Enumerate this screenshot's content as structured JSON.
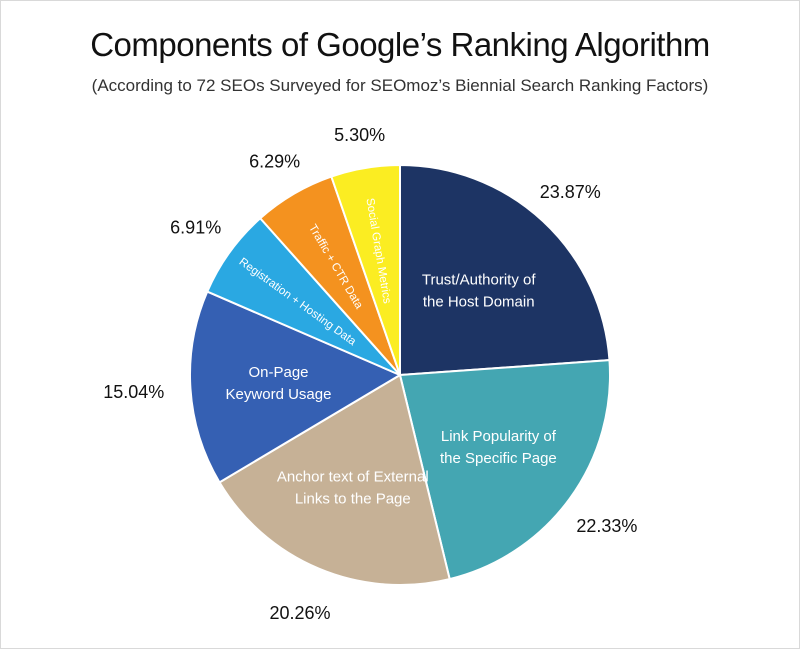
{
  "chart_data": {
    "type": "pie",
    "title": "Components of Google’s Ranking Algorithm",
    "subtitle": "(According to 72 SEOs Surveyed for SEOmoz’s Biennial Search Ranking Factors)",
    "slices": [
      {
        "label": "Trust/Authority of the Host Domain",
        "label_lines": [
          "Trust/Authority of",
          "the Host Domain"
        ],
        "value": 23.87,
        "value_label": "23.87%",
        "color": "#1d3464",
        "label_color": "#ffffff"
      },
      {
        "label": "Link Popularity of the Specific Page",
        "label_lines": [
          "Link Popularity of",
          "the Specific Page"
        ],
        "value": 22.33,
        "value_label": "22.33%",
        "color": "#44a6b2",
        "label_color": "#ffffff"
      },
      {
        "label": "Anchor text of External Links to the Page",
        "label_lines": [
          "Anchor text of External",
          "Links to the Page"
        ],
        "value": 20.26,
        "value_label": "20.26%",
        "color": "#c6b196",
        "label_color": "#ffffff"
      },
      {
        "label": "On-Page Keyword Usage",
        "label_lines": [
          "On-Page",
          "Keyword Usage"
        ],
        "value": 15.04,
        "value_label": "15.04%",
        "color": "#3560b3",
        "label_color": "#ffffff"
      },
      {
        "label": "Registration + Hosting Data",
        "label_lines": [
          "Registration + Hosting Data"
        ],
        "value": 6.91,
        "value_label": "6.91%",
        "color": "#2aa8e2",
        "label_color": "#ffffff"
      },
      {
        "label": "Traffic + CTR Data",
        "label_lines": [
          "Traffic + CTR Data"
        ],
        "value": 6.29,
        "value_label": "6.29%",
        "color": "#f4921f",
        "label_color": "#ffffff"
      },
      {
        "label": "Social Graph Metrics",
        "label_lines": [
          "Social Graph Metrics"
        ],
        "value": 5.3,
        "value_label": "5.30%",
        "color": "#fbed22",
        "label_color": "#111111"
      }
    ],
    "start_angle_deg": 0,
    "direction": "clockwise",
    "legend": "none"
  }
}
